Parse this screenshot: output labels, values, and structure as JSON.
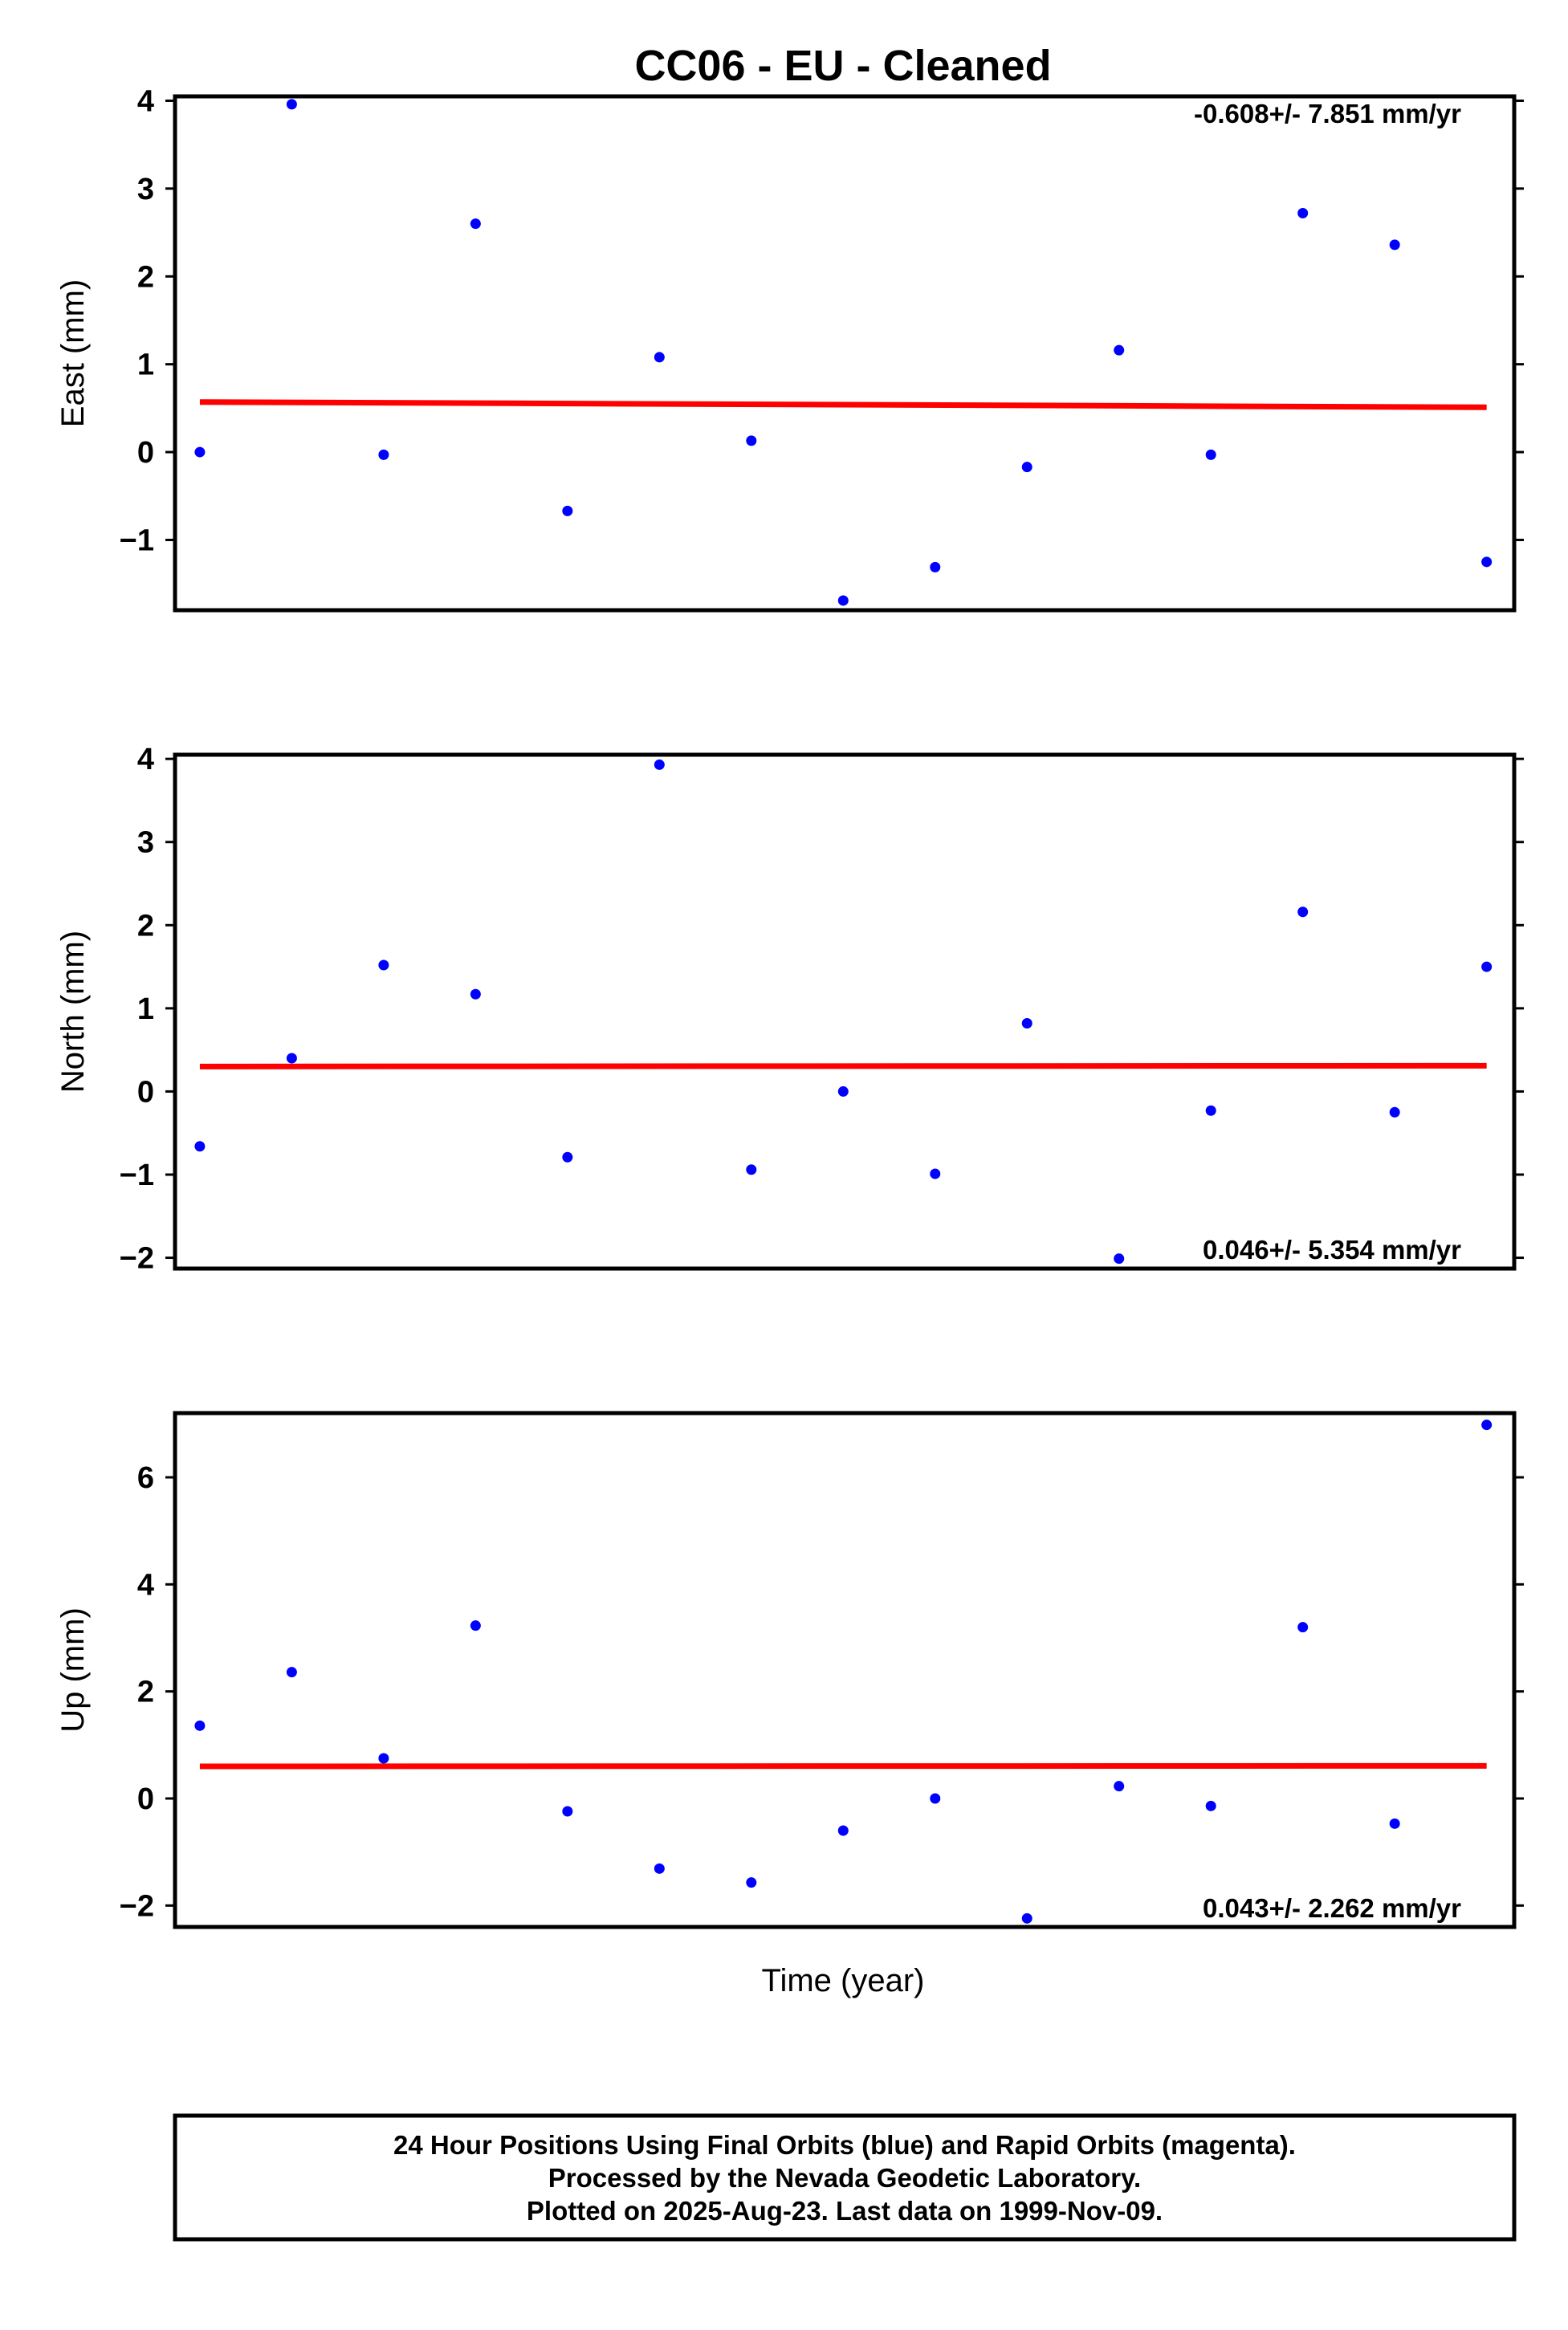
{
  "title": "CC06  - EU - Cleaned",
  "xlabel": "Time (year)",
  "colors": {
    "points": "#0000ff",
    "trend": "#ff0000",
    "frame": "#000000"
  },
  "footer": {
    "lines": [
      "24 Hour Positions Using Final Orbits (blue) and Rapid Orbits (magenta).",
      "Processed by the Nevada Geodetic Laboratory.",
      "Plotted on 2025-Aug-23. Last data on 1999-Nov-09."
    ]
  },
  "chart_data": [
    {
      "type": "scatter",
      "ylabel": "East (mm)",
      "rate_label": "-0.608+/- 7.851 mm/yr",
      "rate_position": "top-right",
      "ylim": [
        -1.8,
        4.05
      ],
      "yticks": [
        4,
        3,
        2,
        1,
        0,
        -1
      ],
      "ytick_labels": [
        "4",
        "3",
        "2",
        "1",
        "0",
        "−1"
      ],
      "x": [
        0,
        1,
        2,
        3,
        4,
        5,
        6,
        7,
        8,
        9,
        10,
        11,
        12,
        13,
        14
      ],
      "xlim": [
        -0.27,
        14.3
      ],
      "series": [
        {
          "values": [
            0.0,
            3.96,
            -0.03,
            2.6,
            -0.67,
            1.08,
            0.13,
            -1.69,
            -1.31,
            -0.17,
            1.16,
            -0.03,
            2.72,
            2.36,
            -1.25
          ]
        }
      ],
      "trend": {
        "start": 0.57,
        "end": 0.51
      }
    },
    {
      "type": "scatter",
      "ylabel": "North (mm)",
      "rate_label": "0.046+/- 5.354 mm/yr",
      "rate_position": "bottom-right",
      "ylim": [
        -2.13,
        4.05
      ],
      "yticks": [
        4,
        3,
        2,
        1,
        0,
        -1,
        -2
      ],
      "ytick_labels": [
        "4",
        "3",
        "2",
        "1",
        "0",
        "−1",
        "−2"
      ],
      "x": [
        0,
        1,
        2,
        3,
        4,
        5,
        6,
        7,
        8,
        9,
        10,
        11,
        12,
        13,
        14
      ],
      "xlim": [
        -0.27,
        14.3
      ],
      "series": [
        {
          "values": [
            -0.66,
            0.4,
            1.52,
            1.17,
            -0.79,
            3.93,
            -0.94,
            0.0,
            -0.99,
            0.82,
            -2.01,
            -0.23,
            2.16,
            -0.25,
            1.5
          ]
        }
      ],
      "trend": {
        "start": 0.3,
        "end": 0.31
      }
    },
    {
      "type": "scatter",
      "ylabel": "Up (mm)",
      "rate_label": "0.043+/- 2.262 mm/yr",
      "rate_position": "bottom-right",
      "ylim": [
        -2.4,
        7.2
      ],
      "yticks": [
        6,
        4,
        2,
        0,
        -2
      ],
      "ytick_labels": [
        "6",
        "4",
        "2",
        "0",
        "−2"
      ],
      "x": [
        0,
        1,
        2,
        3,
        4,
        5,
        6,
        7,
        8,
        9,
        10,
        11,
        12,
        13,
        14
      ],
      "xlim": [
        -0.27,
        14.3
      ],
      "series": [
        {
          "values": [
            1.36,
            2.36,
            0.75,
            3.23,
            -0.24,
            -1.31,
            -1.57,
            -0.6,
            0.0,
            -2.24,
            0.23,
            -0.14,
            3.2,
            -0.47,
            6.98
          ]
        }
      ],
      "trend": {
        "start": 0.6,
        "end": 0.61
      }
    }
  ]
}
